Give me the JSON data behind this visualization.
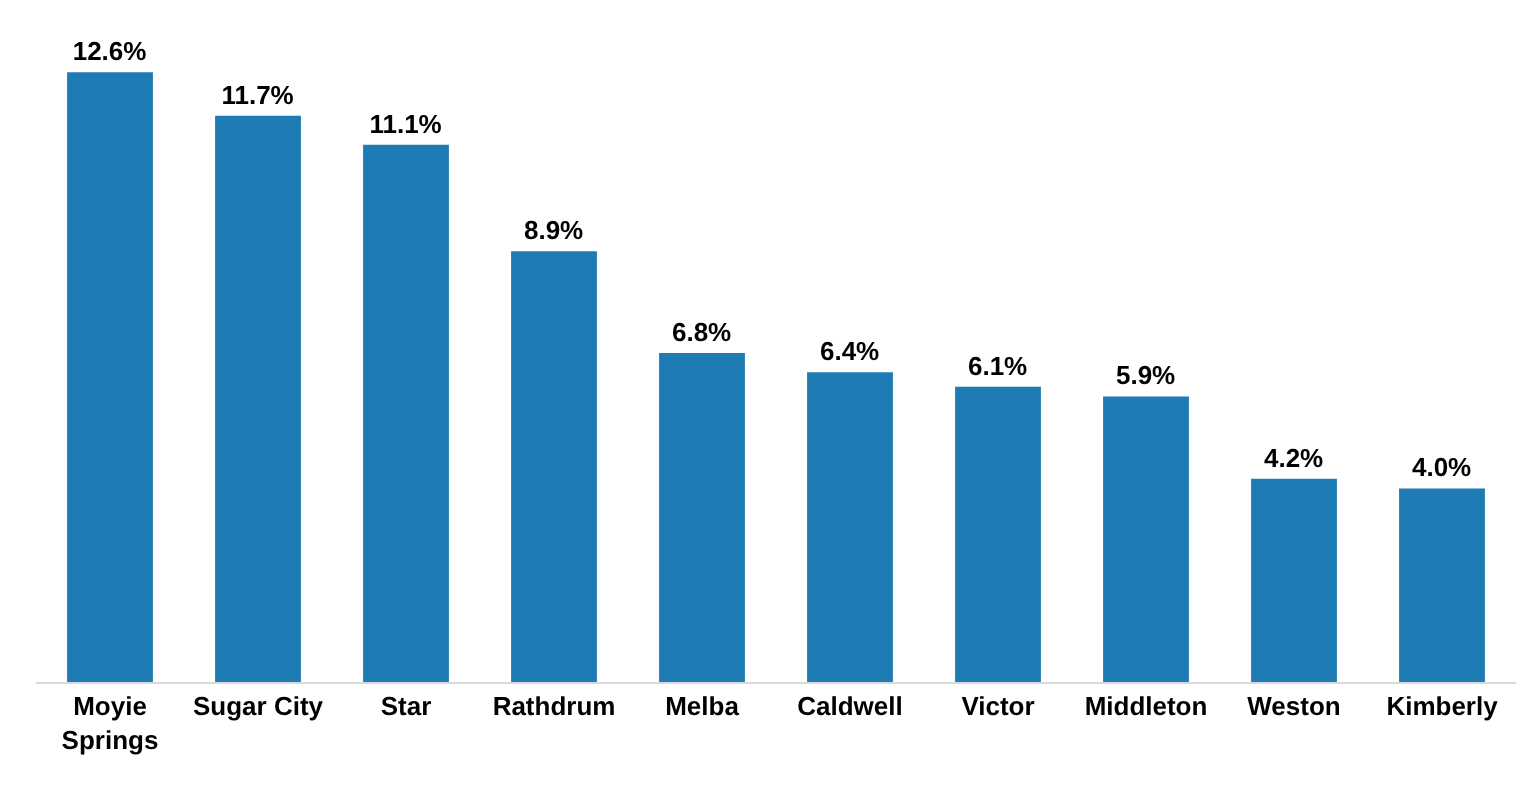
{
  "chart_data": {
    "type": "bar",
    "categories": [
      "Moyie Springs",
      "Sugar City",
      "Star",
      "Rathdrum",
      "Melba",
      "Caldwell",
      "Victor",
      "Middleton",
      "Weston",
      "Kimberly"
    ],
    "values": [
      12.6,
      11.7,
      11.1,
      8.9,
      6.8,
      6.4,
      6.1,
      5.9,
      4.2,
      4.0
    ],
    "value_labels": [
      "12.6%",
      "11.7%",
      "11.1%",
      "8.9%",
      "6.8%",
      "6.4%",
      "6.1%",
      "5.9%",
      "4.2%",
      "4.0%"
    ],
    "color": "#1f7bb4",
    "tick_labels": "x"
  }
}
